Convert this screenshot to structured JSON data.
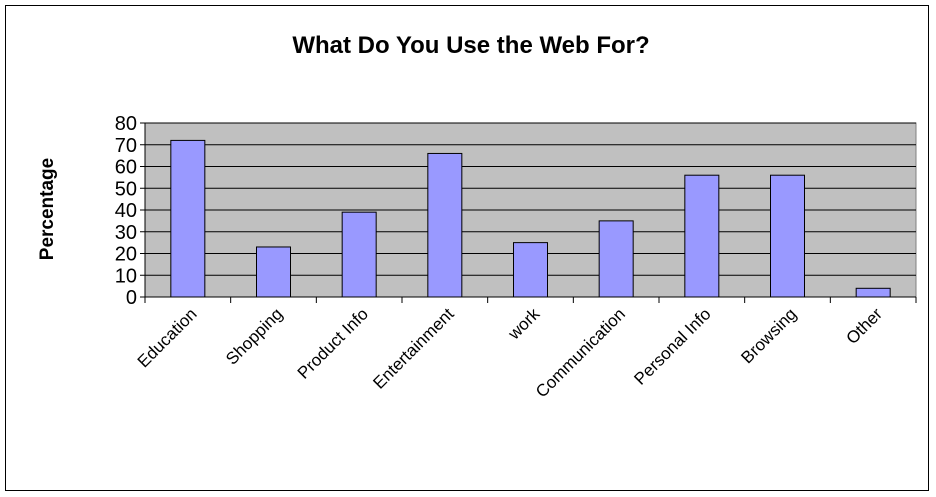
{
  "chart_data": {
    "type": "bar",
    "title": "What Do You Use the Web For?",
    "xlabel": "",
    "ylabel": "Percentage",
    "categories": [
      "Education",
      "Shopping",
      "Product Info",
      "Entertainment",
      "work",
      "Communication",
      "Personal Info",
      "Browsing",
      "Other"
    ],
    "values": [
      72,
      23,
      39,
      66,
      25,
      35,
      56,
      56,
      4
    ],
    "ylim": [
      0,
      80
    ],
    "yticks": [
      "0",
      "10",
      "20",
      "30",
      "40",
      "50",
      "60",
      "70",
      "80"
    ],
    "grid": true,
    "legend": "none",
    "colors": {
      "bar_fill": "#9999ff",
      "plot_background": "#c0c0c0",
      "grid": "#000000"
    }
  }
}
